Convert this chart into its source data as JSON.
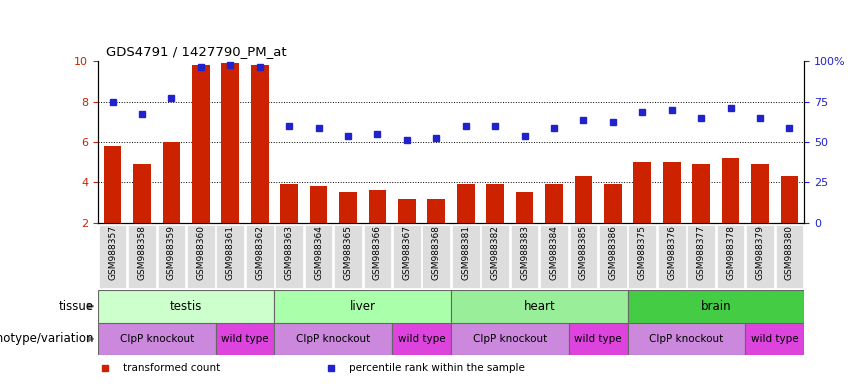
{
  "title": "GDS4791 / 1427790_PM_at",
  "samples": [
    "GSM988357",
    "GSM988358",
    "GSM988359",
    "GSM988360",
    "GSM988361",
    "GSM988362",
    "GSM988363",
    "GSM988364",
    "GSM988365",
    "GSM988366",
    "GSM988367",
    "GSM988368",
    "GSM988381",
    "GSM988382",
    "GSM988383",
    "GSM988384",
    "GSM988385",
    "GSM988386",
    "GSM988375",
    "GSM988376",
    "GSM988377",
    "GSM988378",
    "GSM988379",
    "GSM988380"
  ],
  "bar_values": [
    5.8,
    4.9,
    6.0,
    9.8,
    9.9,
    9.8,
    3.9,
    3.8,
    3.5,
    3.6,
    3.2,
    3.2,
    3.9,
    3.9,
    3.5,
    3.9,
    4.3,
    3.9,
    5.0,
    5.0,
    4.9,
    5.2,
    4.9,
    4.3
  ],
  "dot_values": [
    8.0,
    7.4,
    8.2,
    9.7,
    9.8,
    9.7,
    6.8,
    6.7,
    6.3,
    6.4,
    6.1,
    6.2,
    6.8,
    6.8,
    6.3,
    6.7,
    7.1,
    7.0,
    7.5,
    7.6,
    7.2,
    7.7,
    7.2,
    6.7
  ],
  "bar_color": "#cc2200",
  "dot_color": "#2222cc",
  "ylim_left": [
    2,
    10
  ],
  "yticks_left": [
    2,
    4,
    6,
    8,
    10
  ],
  "yticks_right": [
    0,
    25,
    50,
    75,
    100
  ],
  "ytick_labels_right": [
    "0",
    "25",
    "50",
    "75",
    "100%"
  ],
  "tissue_rows": [
    {
      "label": "testis",
      "start": 0,
      "end": 6,
      "color": "#ccffcc"
    },
    {
      "label": "liver",
      "start": 6,
      "end": 12,
      "color": "#aaffaa"
    },
    {
      "label": "heart",
      "start": 12,
      "end": 18,
      "color": "#99ee99"
    },
    {
      "label": "brain",
      "start": 18,
      "end": 24,
      "color": "#44cc44"
    }
  ],
  "genotype_groups": [
    {
      "label": "ClpP knockout",
      "start": 0,
      "end": 4,
      "color": "#ddaaee"
    },
    {
      "label": "wild type",
      "start": 4,
      "end": 6,
      "color": "#ee66ee"
    },
    {
      "label": "ClpP knockout",
      "start": 6,
      "end": 10,
      "color": "#ddaaee"
    },
    {
      "label": "wild type",
      "start": 10,
      "end": 12,
      "color": "#ee66ee"
    },
    {
      "label": "ClpP knockout",
      "start": 12,
      "end": 16,
      "color": "#ddaaee"
    },
    {
      "label": "wild type",
      "start": 16,
      "end": 18,
      "color": "#ee66ee"
    },
    {
      "label": "ClpP knockout",
      "start": 18,
      "end": 22,
      "color": "#ddaaee"
    },
    {
      "label": "wild type",
      "start": 22,
      "end": 24,
      "color": "#ee66ee"
    }
  ],
  "legend_items": [
    {
      "label": "transformed count",
      "color": "#cc2200"
    },
    {
      "label": "percentile rank within the sample",
      "color": "#2222cc"
    }
  ]
}
